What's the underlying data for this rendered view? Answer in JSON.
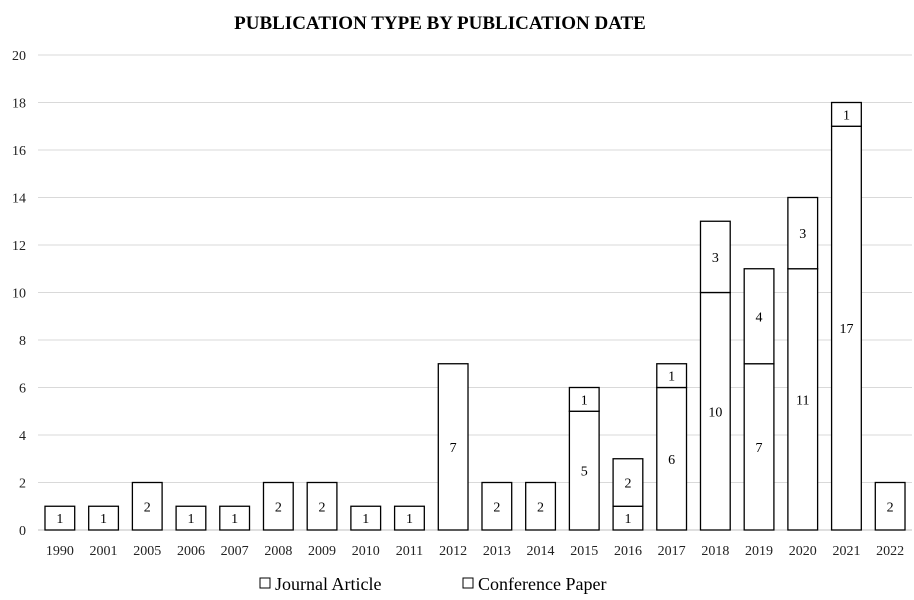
{
  "chart_data": {
    "type": "bar",
    "stacked": true,
    "title": "PUBLICATION TYPE BY PUBLICATION DATE",
    "xlabel": "",
    "ylabel": "",
    "ylim": [
      0,
      20
    ],
    "ytick_step": 2,
    "grid": true,
    "legend_position": "bottom",
    "categories": [
      "1990",
      "2001",
      "2005",
      "2006",
      "2007",
      "2008",
      "2009",
      "2010",
      "2011",
      "2012",
      "2013",
      "2014",
      "2015",
      "2016",
      "2017",
      "2018",
      "2019",
      "2020",
      "2021",
      "2022"
    ],
    "series": [
      {
        "name": "Journal Article",
        "values": [
          1,
          1,
          2,
          1,
          1,
          2,
          2,
          1,
          1,
          7,
          2,
          2,
          5,
          1,
          6,
          10,
          7,
          11,
          17,
          2
        ]
      },
      {
        "name": "Conference Paper",
        "values": [
          0,
          0,
          0,
          0,
          0,
          0,
          0,
          0,
          0,
          0,
          0,
          0,
          1,
          2,
          1,
          3,
          4,
          3,
          1,
          0
        ]
      }
    ],
    "colors": {
      "fill": "#ffffff",
      "stroke": "#000000",
      "grid": "#d9d9d9"
    }
  }
}
